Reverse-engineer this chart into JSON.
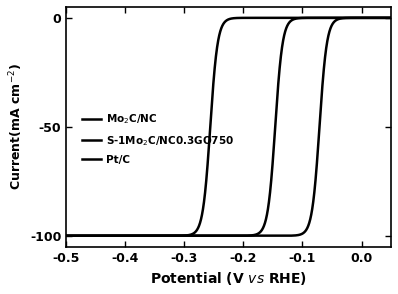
{
  "title": "",
  "xlabel": "Potential (V $\\it{vs}$ RHE)",
  "ylabel": "Current(mA cm$^{-2}$)",
  "xlim": [
    -0.5,
    0.05
  ],
  "ylim": [
    -105,
    5
  ],
  "xticks": [
    -0.5,
    -0.4,
    -0.3,
    -0.2,
    -0.1,
    0.0
  ],
  "yticks": [
    0,
    -50,
    -100
  ],
  "background_color": "#ffffff",
  "line_color": "#000000",
  "curves": [
    {
      "label": "Mo$_2$C/NC",
      "onset": -0.04,
      "steepness": 80,
      "lw": 1.8
    },
    {
      "label": "S-1Mo$_2$C/NC0.3GO750",
      "onset": -0.115,
      "steepness": 80,
      "lw": 1.8
    },
    {
      "label": "Pt/C",
      "onset": -0.225,
      "steepness": 80,
      "lw": 1.8
    }
  ]
}
